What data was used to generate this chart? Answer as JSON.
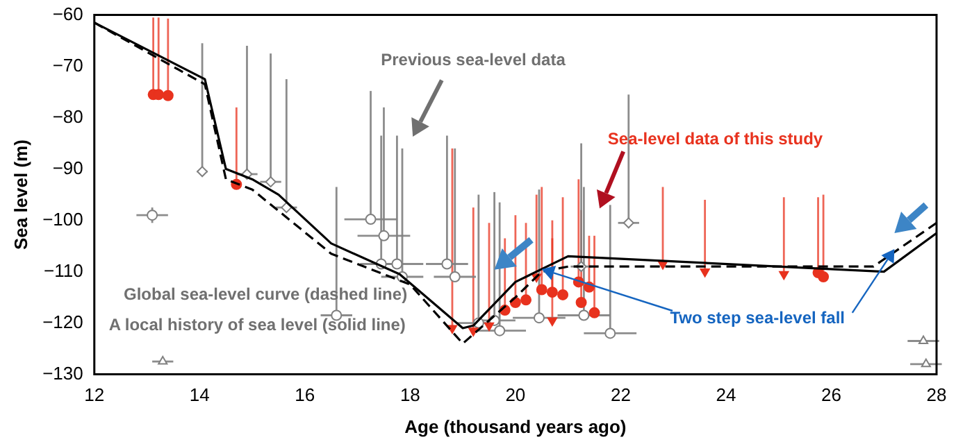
{
  "chart_data": {
    "type": "scatter",
    "xlabel": "Age (thousand years ago)",
    "ylabel": "Sea level (m)",
    "xlim": [
      12,
      28
    ],
    "xticks": [
      12,
      14,
      16,
      18,
      20,
      22,
      24,
      26,
      28
    ],
    "ylim": [
      -130,
      -60
    ],
    "yticks": [
      -130,
      -120,
      -110,
      -100,
      -90,
      -80,
      -70,
      -60
    ],
    "grid": false,
    "legend": false,
    "annotations": [
      "Previous sea-level data",
      "Sea-level data of this study",
      "Global sea-level curve (dashed line)",
      "A local history of sea level (solid line)",
      {
        "text": "Two step sea-level fall",
        "x": 20.5,
        "y": -109.5
      }
    ],
    "series": [
      {
        "type": "line",
        "line_style": "solid",
        "marker": "none",
        "color": "#000000",
        "x": [
          12,
          14.1,
          14.5,
          15,
          15.5,
          16.5,
          17.8,
          19,
          19.2,
          20,
          21,
          27,
          28
        ],
        "values": [
          -61.5,
          -72.5,
          -90,
          -92,
          -95,
          -104.5,
          -110.5,
          -121,
          -120.5,
          -112,
          -107,
          -110,
          -102.5
        ]
      },
      {
        "type": "line",
        "line_style": "dashed",
        "marker": "none",
        "color": "#000000",
        "x": [
          12,
          14.1,
          14.5,
          15,
          16.5,
          18,
          19,
          20,
          20.5,
          21,
          26.8,
          28
        ],
        "values": [
          -61.5,
          -73.5,
          -92,
          -94,
          -106.5,
          -112.5,
          -124,
          -115,
          -110,
          -109,
          -109,
          -100.5
        ]
      },
      {
        "type": "scatter",
        "marker": "circle",
        "color": "#e8321e",
        "x": [
          13.12,
          13.22,
          13.4,
          14.7,
          19.8,
          20.0,
          20.2,
          20.5,
          20.7,
          20.9,
          21.2,
          21.4,
          21.25,
          21.5,
          25.75,
          25.85
        ],
        "values": [
          -75.5,
          -75.5,
          -75.7,
          -93,
          -117.5,
          -116,
          -115.5,
          -113.5,
          -114,
          -114.5,
          -112,
          -113,
          -116,
          -118,
          -110.2,
          -111
        ],
        "errors": [
          [
            -75.5,
            -60.5
          ],
          [
            -75.5,
            -60.5
          ],
          [
            -75.7,
            -60.7
          ],
          [
            -93,
            -78
          ],
          [
            -117.5,
            -103.5
          ],
          [
            -116,
            -99
          ],
          [
            -115.5,
            -100.5
          ],
          [
            -113.5,
            -93.5
          ],
          [
            -114,
            -100
          ],
          [
            -114.5,
            -95.5
          ],
          [
            -112,
            -92
          ],
          [
            -113,
            -103
          ],
          [
            -116,
            -98
          ],
          [
            -118,
            -103
          ],
          [
            -110.2,
            -95.5
          ],
          [
            -111,
            -95
          ]
        ]
      },
      {
        "type": "scatter",
        "marker": "triangle",
        "color": "#e8321e",
        "x": [
          18.8,
          19.2,
          19.5,
          20.4,
          20.7,
          22.8,
          23.6,
          25.1
        ],
        "values": [
          -121,
          -121.5,
          -120.5,
          -111,
          -119.5,
          -108.5,
          -110,
          -110.5
        ],
        "errors": [
          [
            -121,
            -86
          ],
          [
            -121.5,
            -97.5
          ],
          [
            -120.5,
            -100.5
          ],
          [
            -111,
            -95
          ],
          [
            -119.5,
            -103.5
          ],
          [
            -108.5,
            -93.5
          ],
          [
            -110,
            -96
          ],
          [
            -110.5,
            -95.5
          ]
        ]
      },
      {
        "type": "scatter",
        "marker": "diamond",
        "color": "#808080",
        "x": [
          14.05,
          14.9,
          15.35,
          15.65,
          22.15,
          21.25
        ],
        "values": [
          -90.5,
          -91,
          -92.5,
          -97.5,
          -100.5,
          -109
        ],
        "errors": [
          [
            -90.5,
            -65.5
          ],
          [
            -91,
            -66
          ],
          [
            -92.5,
            -67.5
          ],
          [
            -97.5,
            -72.5
          ],
          [
            -100.5,
            -75.5
          ],
          [
            -109,
            -85
          ]
        ],
        "xerrors": [
          0.1,
          0.2,
          0.2,
          0.2,
          0.2,
          0.2
        ]
      },
      {
        "type": "scatter",
        "marker": "circle",
        "color": "#808080",
        "x": [
          13.1,
          16.6,
          17.25,
          17.5,
          17.45,
          17.75,
          17.85,
          18.7,
          18.85,
          19.3,
          19.6,
          19.7,
          20.45,
          21.3,
          21.8
        ],
        "values": [
          -99,
          -118.5,
          -99.8,
          -103,
          -108.5,
          -108.5,
          -111,
          -108.5,
          -111,
          -120,
          -119.5,
          -121.5,
          -119,
          -118.5,
          -122
        ],
        "errors": [
          1.5,
          [
            -118.5,
            -93.5
          ],
          [
            -99.8,
            -74.8
          ],
          [
            -103,
            -78
          ],
          [
            -108.5,
            -83.5
          ],
          [
            -108.5,
            -83.5
          ],
          [
            -111,
            -86
          ],
          [
            -108.5,
            -83.5
          ],
          [
            -111,
            -86
          ],
          [
            -120,
            -95
          ],
          [
            -119.5,
            -94.5
          ],
          [
            -121.5,
            -96.5
          ],
          [
            -119,
            -94
          ],
          [
            -118.5,
            -93.5
          ],
          [
            -122,
            -97
          ]
        ],
        "xerrors": [
          0.3,
          0.3,
          0.5,
          0.5,
          0.4,
          0.5,
          0.4,
          0.4,
          0.4,
          0.4,
          0.4,
          0.5,
          0.5,
          0.5,
          0.5
        ]
      },
      {
        "type": "scatter",
        "marker": "triangle",
        "color": "#808080",
        "x": [
          13.3,
          27.75,
          27.8
        ],
        "values": [
          -127.5,
          -123.5,
          -128
        ],
        "xerrors": [
          0.2,
          0.3,
          0.3
        ]
      }
    ]
  }
}
